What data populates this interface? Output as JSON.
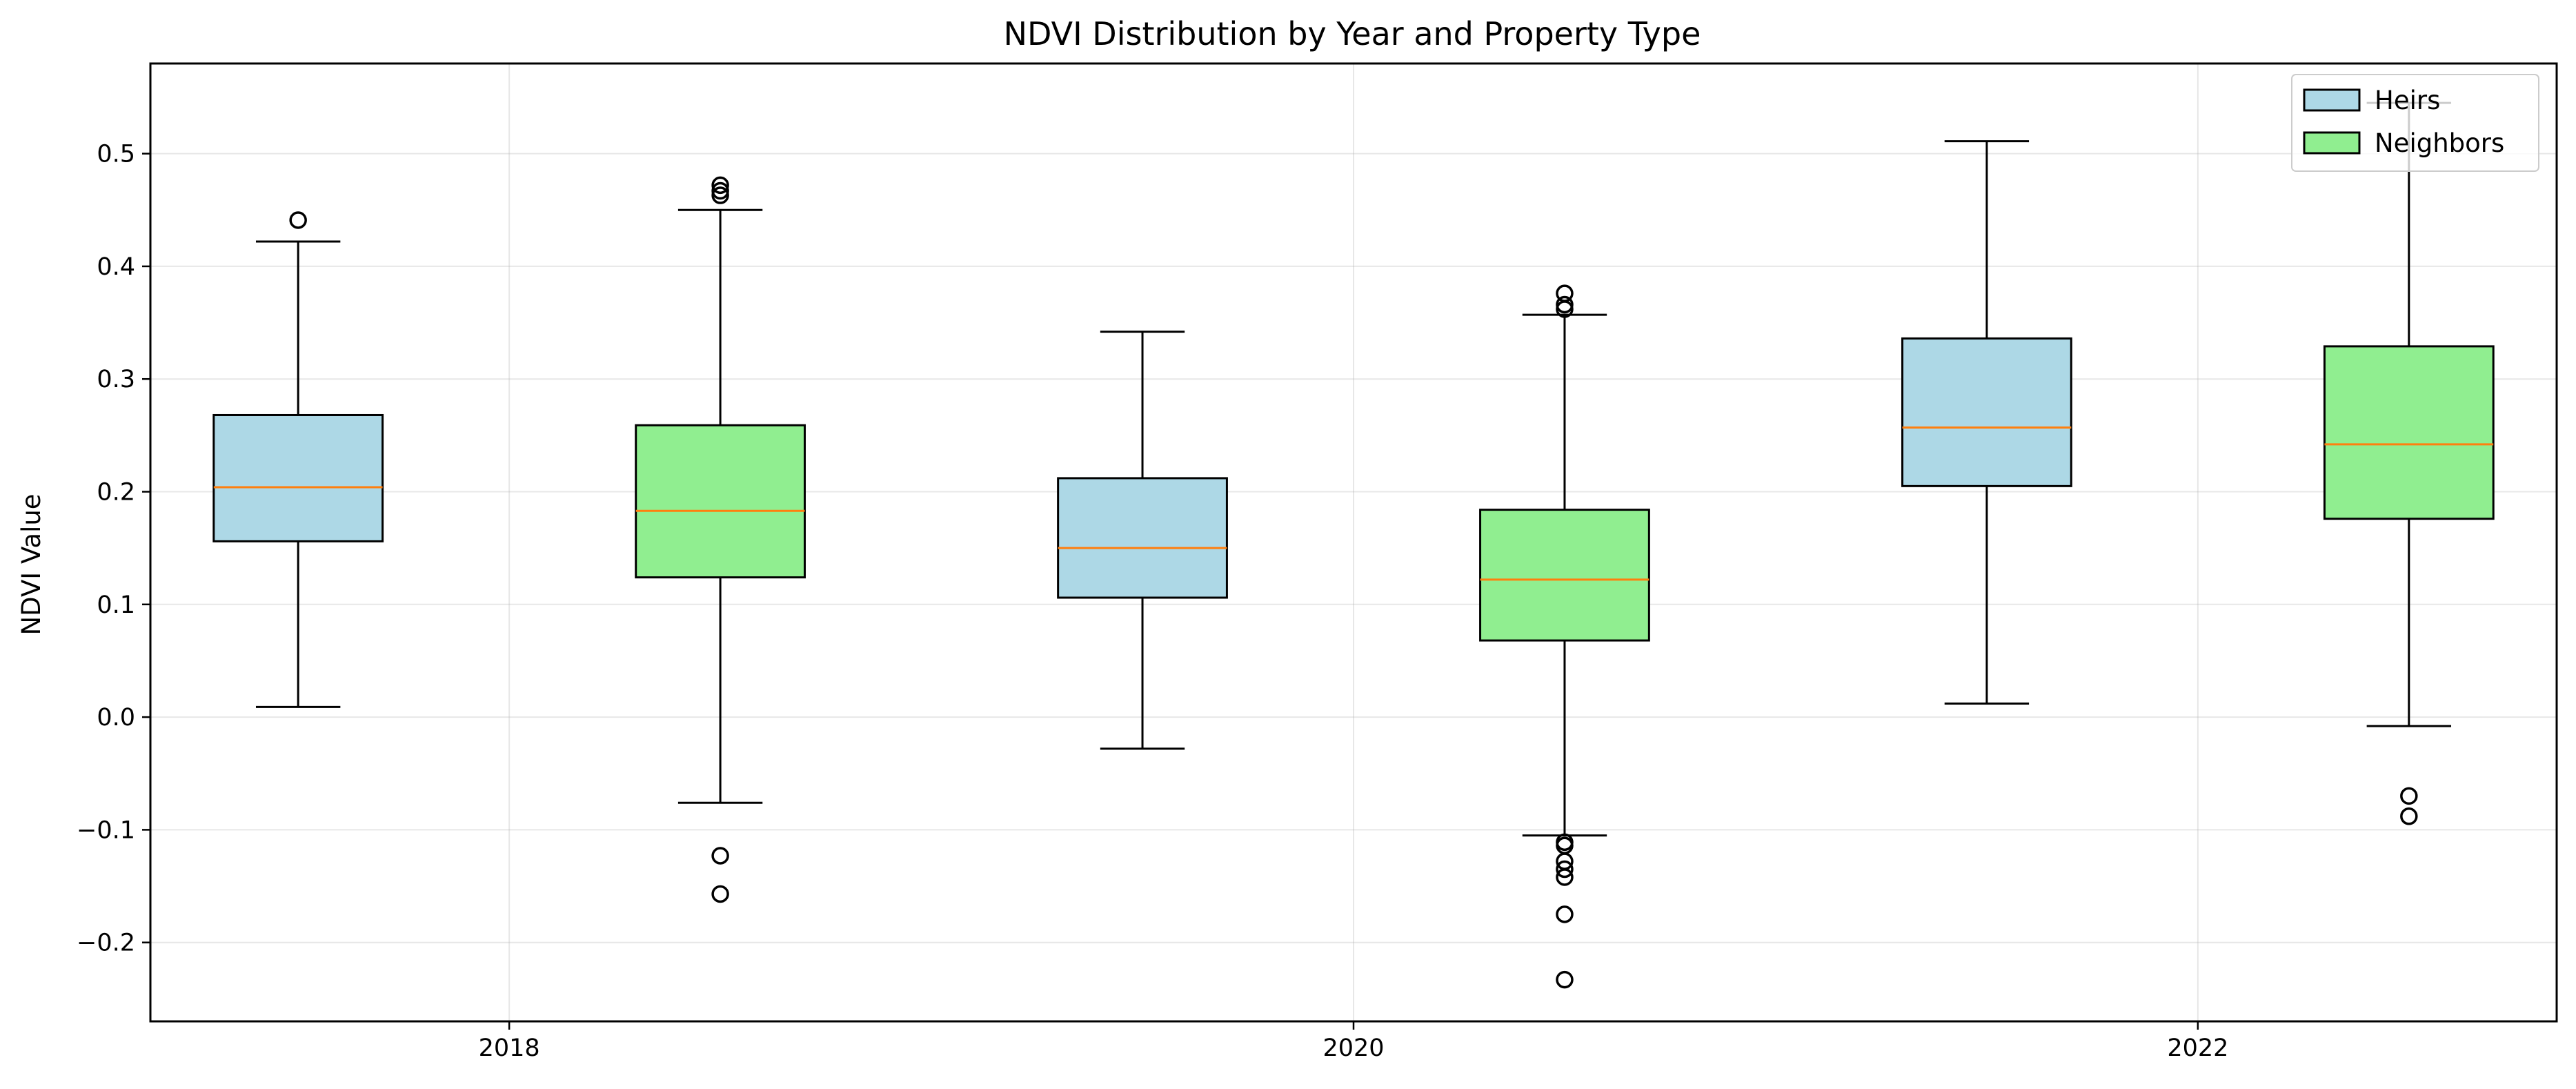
{
  "chart_data": {
    "type": "box",
    "title": "NDVI Distribution by Year and Property Type",
    "xlabel": "",
    "ylabel": "NDVI Value",
    "xlim": [
      2017.15,
      2022.85
    ],
    "ylim": [
      -0.27,
      0.58
    ],
    "xticks": [
      2018,
      2020,
      2022
    ],
    "yticks": [
      -0.2,
      -0.1,
      0.0,
      0.1,
      0.2,
      0.3,
      0.4,
      0.5
    ],
    "grid": true,
    "legend_position": "top-right",
    "colors": {
      "Heirs": "#add8e6",
      "Neighbors": "#90ee90",
      "median": "#ff7f0e"
    },
    "series": [
      {
        "name": "Heirs",
        "color": "#add8e6"
      },
      {
        "name": "Neighbors",
        "color": "#90ee90"
      }
    ],
    "boxes": [
      {
        "group": "Heirs",
        "x": 2017.5,
        "whisker_low": 0.009,
        "q1": 0.156,
        "median": 0.204,
        "q3": 0.268,
        "whisker_high": 0.422,
        "outliers": [
          0.441
        ]
      },
      {
        "group": "Neighbors",
        "x": 2018.5,
        "whisker_low": -0.076,
        "q1": 0.124,
        "median": 0.183,
        "q3": 0.259,
        "whisker_high": 0.45,
        "outliers": [
          0.463,
          0.467,
          0.472,
          -0.123,
          -0.157
        ]
      },
      {
        "group": "Heirs",
        "x": 2019.5,
        "whisker_low": -0.028,
        "q1": 0.106,
        "median": 0.15,
        "q3": 0.212,
        "whisker_high": 0.342,
        "outliers": []
      },
      {
        "group": "Neighbors",
        "x": 2020.5,
        "whisker_low": -0.105,
        "q1": 0.068,
        "median": 0.122,
        "q3": 0.184,
        "whisker_high": 0.357,
        "outliers": [
          0.362,
          0.366,
          0.376,
          -0.111,
          -0.114,
          -0.128,
          -0.135,
          -0.142,
          -0.175,
          -0.233
        ]
      },
      {
        "group": "Heirs",
        "x": 2021.5,
        "whisker_low": 0.012,
        "q1": 0.205,
        "median": 0.257,
        "q3": 0.336,
        "whisker_high": 0.511,
        "outliers": []
      },
      {
        "group": "Neighbors",
        "x": 2022.5,
        "whisker_low": -0.008,
        "q1": 0.176,
        "median": 0.242,
        "q3": 0.329,
        "whisker_high": 0.545,
        "outliers": [
          -0.07,
          -0.088
        ]
      }
    ]
  }
}
